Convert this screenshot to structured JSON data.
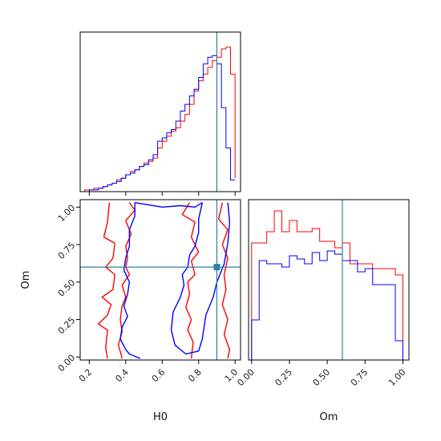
{
  "chart_data": [
    {
      "panel": "H0-marginal",
      "type": "histogram",
      "xlim": [
        0.15,
        1.03
      ],
      "bins": [
        0.15,
        0.175,
        0.2,
        0.225,
        0.25,
        0.275,
        0.3,
        0.325,
        0.35,
        0.375,
        0.4,
        0.425,
        0.45,
        0.475,
        0.5,
        0.525,
        0.55,
        0.575,
        0.6,
        0.625,
        0.65,
        0.675,
        0.7,
        0.725,
        0.75,
        0.775,
        0.8,
        0.825,
        0.85,
        0.875,
        0.9,
        0.925,
        0.95,
        0.975,
        1.0
      ],
      "series": [
        {
          "color": "#ff0000",
          "values": [
            0,
            0.01,
            0.01,
            0.02,
            0.02,
            0.03,
            0.04,
            0.05,
            0.07,
            0.08,
            0.1,
            0.12,
            0.13,
            0.15,
            0.17,
            0.18,
            0.2,
            0.26,
            0.3,
            0.33,
            0.36,
            0.38,
            0.42,
            0.46,
            0.52,
            0.6,
            0.66,
            0.7,
            0.74,
            0.78,
            0.8,
            0.85,
            0.86,
            0.7,
            0.08
          ]
        },
        {
          "color": "#0000ff",
          "values": [
            0,
            0,
            0.01,
            0.01,
            0.02,
            0.03,
            0.04,
            0.05,
            0.06,
            0.08,
            0.1,
            0.11,
            0.13,
            0.15,
            0.16,
            0.19,
            0.22,
            0.3,
            0.32,
            0.35,
            0.37,
            0.42,
            0.48,
            0.52,
            0.57,
            0.61,
            0.68,
            0.76,
            0.8,
            0.81,
            0.76,
            0.5,
            0.26,
            0.07,
            0.07
          ]
        }
      ],
      "truth_x": 0.9
    },
    {
      "panel": "Om-marginal",
      "type": "histogram",
      "xlim": [
        -0.02,
        1.04
      ],
      "xticks": [
        "0.00",
        "0.25",
        "0.50",
        "0.75",
        "1.00"
      ],
      "xlabel": "Om",
      "bins": [
        0.0,
        0.05,
        0.1,
        0.15,
        0.2,
        0.25,
        0.3,
        0.35,
        0.4,
        0.45,
        0.5,
        0.55,
        0.6,
        0.65,
        0.7,
        0.75,
        0.8,
        0.85,
        0.9,
        0.95,
        1.0
      ],
      "series": [
        {
          "color": "#ff0000",
          "values": [
            0.73,
            0.73,
            0.8,
            0.93,
            0.8,
            0.87,
            0.8,
            0.8,
            0.82,
            0.74,
            0.74,
            0.7,
            0.73,
            0.6,
            0.6,
            0.6,
            0.57,
            0.57,
            0.57,
            0.53
          ]
        },
        {
          "color": "#0000ff",
          "values": [
            0.25,
            0.62,
            0.6,
            0.6,
            0.58,
            0.65,
            0.63,
            0.6,
            0.67,
            0.62,
            0.68,
            0.66,
            0.62,
            0.62,
            0.55,
            0.57,
            0.47,
            0.47,
            0.47,
            0.12
          ]
        }
      ],
      "truth_x": 0.6
    },
    {
      "panel": "H0-Om-joint",
      "type": "contour",
      "xlim": [
        0.15,
        1.03
      ],
      "ylim": [
        -0.02,
        1.05
      ],
      "xticks": [
        "0.2",
        "0.4",
        "0.6",
        "0.8",
        "1.0"
      ],
      "yticks": [
        "0.00",
        "0.25",
        "0.50",
        "0.75",
        "1.00"
      ],
      "xlabel": "H0",
      "ylabel": "Om",
      "truth": [
        0.9,
        0.6
      ],
      "contours": [
        {
          "color": "#ff0000",
          "points": [
            [
              0.31,
              1.03
            ],
            [
              0.3,
              0.9
            ],
            [
              0.28,
              0.8
            ],
            [
              0.34,
              0.76
            ],
            [
              0.33,
              0.66
            ],
            [
              0.29,
              0.6
            ],
            [
              0.34,
              0.55
            ],
            [
              0.33,
              0.45
            ],
            [
              0.27,
              0.4
            ],
            [
              0.32,
              0.35
            ],
            [
              0.3,
              0.28
            ],
            [
              0.25,
              0.22
            ],
            [
              0.3,
              0.18
            ],
            [
              0.29,
              0.06
            ],
            [
              0.3,
              -0.01
            ]
          ]
        },
        {
          "color": "#ff0000",
          "points": [
            [
              0.42,
              1.03
            ],
            [
              0.45,
              0.98
            ],
            [
              0.4,
              0.91
            ],
            [
              0.43,
              0.82
            ],
            [
              0.4,
              0.74
            ],
            [
              0.41,
              0.66
            ],
            [
              0.4,
              0.6
            ],
            [
              0.42,
              0.55
            ],
            [
              0.38,
              0.48
            ],
            [
              0.4,
              0.4
            ],
            [
              0.38,
              0.34
            ],
            [
              0.37,
              0.25
            ],
            [
              0.38,
              0.17
            ],
            [
              0.36,
              0.08
            ],
            [
              0.38,
              -0.01
            ]
          ]
        },
        {
          "color": "#ff0000",
          "points": [
            [
              0.75,
              1.03
            ],
            [
              0.71,
              0.95
            ],
            [
              0.78,
              0.9
            ],
            [
              0.76,
              0.8
            ],
            [
              0.8,
              0.7
            ],
            [
              0.76,
              0.64
            ],
            [
              0.78,
              0.55
            ],
            [
              0.74,
              0.5
            ],
            [
              0.75,
              0.42
            ],
            [
              0.73,
              0.33
            ],
            [
              0.76,
              0.25
            ],
            [
              0.74,
              0.18
            ],
            [
              0.77,
              0.1
            ],
            [
              0.76,
              -0.01
            ]
          ]
        },
        {
          "color": "#ff0000",
          "points": [
            [
              0.93,
              1.03
            ],
            [
              0.91,
              0.92
            ],
            [
              0.96,
              0.85
            ],
            [
              0.93,
              0.75
            ],
            [
              0.96,
              0.66
            ],
            [
              0.94,
              0.55
            ],
            [
              0.95,
              0.45
            ],
            [
              0.93,
              0.35
            ],
            [
              0.96,
              0.25
            ],
            [
              0.94,
              0.15
            ],
            [
              0.97,
              0.05
            ],
            [
              0.96,
              -0.01
            ]
          ]
        },
        {
          "color": "#0000ff",
          "points": [
            [
              0.45,
              1.03
            ],
            [
              0.45,
              0.94
            ],
            [
              0.42,
              0.85
            ],
            [
              0.42,
              0.74
            ],
            [
              0.4,
              0.66
            ],
            [
              0.39,
              0.58
            ],
            [
              0.42,
              0.5
            ],
            [
              0.41,
              0.42
            ],
            [
              0.39,
              0.34
            ],
            [
              0.41,
              0.27
            ],
            [
              0.38,
              0.2
            ],
            [
              0.37,
              0.12
            ],
            [
              0.4,
              0.05
            ],
            [
              0.42,
              0.02
            ],
            [
              0.48,
              -0.01
            ]
          ]
        },
        {
          "color": "#0000ff",
          "points": [
            [
              0.45,
              1.03
            ],
            [
              0.6,
              1.0
            ],
            [
              0.7,
              1.01
            ],
            [
              0.78,
              1.0
            ],
            [
              0.82,
              1.03
            ]
          ]
        },
        {
          "color": "#0000ff",
          "points": [
            [
              0.82,
              1.03
            ],
            [
              0.8,
              0.92
            ],
            [
              0.8,
              0.83
            ],
            [
              0.78,
              0.74
            ],
            [
              0.75,
              0.68
            ],
            [
              0.74,
              0.6
            ],
            [
              0.71,
              0.55
            ],
            [
              0.72,
              0.48
            ],
            [
              0.7,
              0.4
            ],
            [
              0.66,
              0.3
            ],
            [
              0.65,
              0.18
            ],
            [
              0.67,
              0.08
            ],
            [
              0.73,
              0.02
            ],
            [
              0.8,
              0.04
            ],
            [
              0.82,
              0.12
            ],
            [
              0.84,
              0.28
            ],
            [
              0.88,
              0.4
            ],
            [
              0.9,
              0.5
            ],
            [
              0.94,
              0.62
            ],
            [
              0.96,
              0.76
            ],
            [
              0.97,
              0.9
            ],
            [
              0.96,
              1.03
            ]
          ]
        }
      ]
    }
  ]
}
